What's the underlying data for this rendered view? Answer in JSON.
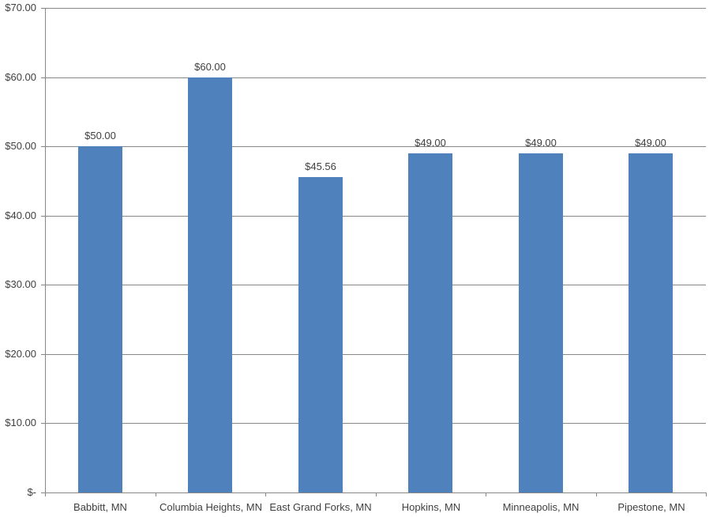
{
  "chart_data": {
    "type": "bar",
    "title": "",
    "xlabel": "",
    "ylabel": "",
    "categories": [
      "Babbitt, MN",
      "Columbia Heights, MN",
      "East Grand Forks, MN",
      "Hopkins, MN",
      "Minneapolis, MN",
      "Pipestone, MN"
    ],
    "values": [
      50,
      60,
      45.56,
      49,
      49,
      49
    ],
    "data_labels": [
      "$50.00",
      "$60.00",
      "$45.56",
      "$49.00",
      "$49.00",
      "$49.00"
    ],
    "y_ticks": [
      {
        "value": 70,
        "label": "$70.00"
      },
      {
        "value": 60,
        "label": "$60.00"
      },
      {
        "value": 50,
        "label": "$50.00"
      },
      {
        "value": 40,
        "label": "$40.00"
      },
      {
        "value": 30,
        "label": "$30.00"
      },
      {
        "value": 20,
        "label": "$20.00"
      },
      {
        "value": 10,
        "label": "$10.00"
      },
      {
        "value": 0,
        "label": "$-"
      }
    ],
    "ylim": [
      0,
      70
    ],
    "grid": true,
    "legend": false,
    "colors": {
      "bar": "#4F81BD",
      "gridline": "#878787",
      "axis": "#878787",
      "text": "#3F3F3F",
      "background": "#FFFFFF"
    }
  }
}
